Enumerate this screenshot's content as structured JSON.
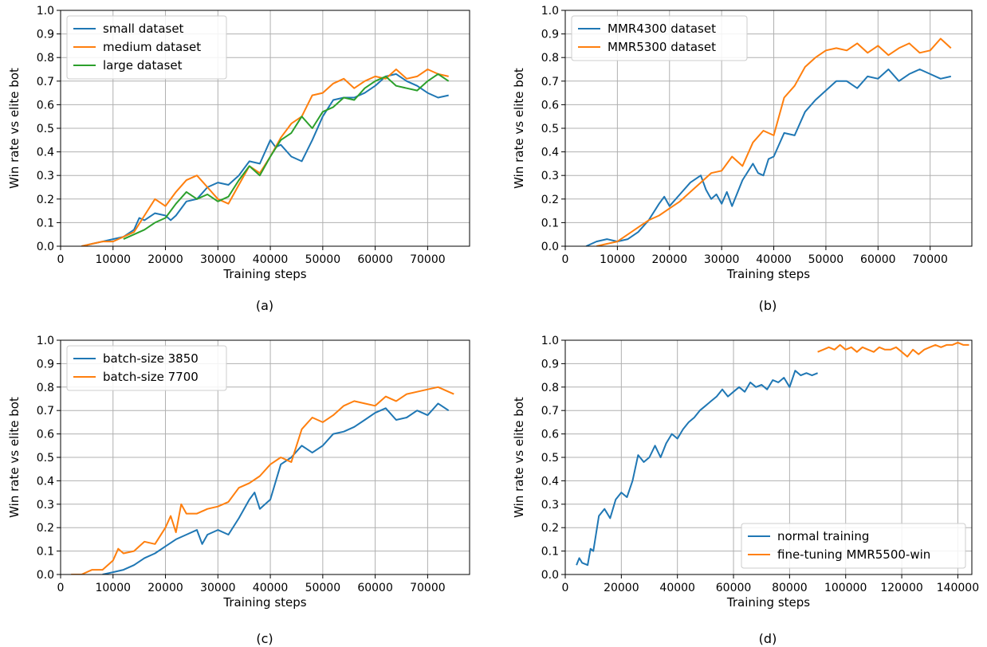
{
  "figure": {
    "colors": {
      "blue": "#1f77b4",
      "orange": "#ff7f0e",
      "green": "#2ca02c",
      "grid": "#b0b0b0"
    }
  },
  "chart_data": [
    {
      "type": "line",
      "caption": "(a)",
      "xlabel": "Training steps",
      "ylabel": "Win rate vs elite bot",
      "xlim": [
        0,
        78000
      ],
      "ylim": [
        0,
        1.0
      ],
      "xticks": [
        0,
        10000,
        20000,
        30000,
        40000,
        50000,
        60000,
        70000
      ],
      "yticks": [
        0.0,
        0.1,
        0.2,
        0.3,
        0.4,
        0.5,
        0.6,
        0.7,
        0.8,
        0.9,
        1.0
      ],
      "grid": true,
      "legend_position": "top-left",
      "series": [
        {
          "name": "small dataset",
          "color": "#1f77b4",
          "x": [
            4000,
            6000,
            8000,
            10000,
            12000,
            14000,
            15000,
            16000,
            18000,
            20000,
            21000,
            22000,
            24000,
            26000,
            28000,
            30000,
            32000,
            34000,
            36000,
            38000,
            40000,
            41000,
            42000,
            44000,
            46000,
            48000,
            50000,
            52000,
            54000,
            56000,
            58000,
            60000,
            62000,
            64000,
            66000,
            68000,
            70000,
            72000,
            74000
          ],
          "y": [
            0.0,
            0.01,
            0.02,
            0.03,
            0.04,
            0.07,
            0.12,
            0.11,
            0.14,
            0.13,
            0.11,
            0.13,
            0.19,
            0.2,
            0.25,
            0.27,
            0.26,
            0.3,
            0.36,
            0.35,
            0.45,
            0.42,
            0.43,
            0.38,
            0.36,
            0.45,
            0.55,
            0.62,
            0.63,
            0.63,
            0.65,
            0.68,
            0.72,
            0.73,
            0.7,
            0.68,
            0.65,
            0.63,
            0.64
          ]
        },
        {
          "name": "medium dataset",
          "color": "#ff7f0e",
          "x": [
            4000,
            6000,
            8000,
            10000,
            12000,
            14000,
            16000,
            18000,
            20000,
            22000,
            24000,
            26000,
            28000,
            30000,
            32000,
            34000,
            36000,
            38000,
            40000,
            42000,
            44000,
            46000,
            48000,
            50000,
            52000,
            54000,
            56000,
            58000,
            60000,
            62000,
            64000,
            66000,
            68000,
            70000,
            72000,
            74000
          ],
          "y": [
            0.0,
            0.01,
            0.02,
            0.02,
            0.04,
            0.06,
            0.13,
            0.2,
            0.17,
            0.23,
            0.28,
            0.3,
            0.25,
            0.2,
            0.18,
            0.26,
            0.34,
            0.31,
            0.38,
            0.46,
            0.52,
            0.55,
            0.64,
            0.65,
            0.69,
            0.71,
            0.67,
            0.7,
            0.72,
            0.71,
            0.75,
            0.71,
            0.72,
            0.75,
            0.73,
            0.72
          ]
        },
        {
          "name": "large dataset",
          "color": "#2ca02c",
          "x": [
            12000,
            14000,
            16000,
            18000,
            20000,
            22000,
            24000,
            26000,
            28000,
            30000,
            32000,
            34000,
            36000,
            38000,
            40000,
            42000,
            44000,
            46000,
            48000,
            50000,
            52000,
            54000,
            56000,
            58000,
            60000,
            62000,
            64000,
            66000,
            68000,
            70000,
            72000,
            74000
          ],
          "y": [
            0.03,
            0.05,
            0.07,
            0.1,
            0.12,
            0.18,
            0.23,
            0.2,
            0.22,
            0.19,
            0.21,
            0.28,
            0.34,
            0.3,
            0.38,
            0.45,
            0.48,
            0.55,
            0.5,
            0.57,
            0.59,
            0.63,
            0.62,
            0.67,
            0.7,
            0.72,
            0.68,
            0.67,
            0.66,
            0.7,
            0.73,
            0.7
          ]
        }
      ]
    },
    {
      "type": "line",
      "caption": "(b)",
      "xlabel": "Training steps",
      "ylabel": "Win rate vs elite bot",
      "xlim": [
        0,
        78000
      ],
      "ylim": [
        0,
        1.0
      ],
      "xticks": [
        0,
        10000,
        20000,
        30000,
        40000,
        50000,
        60000,
        70000
      ],
      "yticks": [
        0.0,
        0.1,
        0.2,
        0.3,
        0.4,
        0.5,
        0.6,
        0.7,
        0.8,
        0.9,
        1.0
      ],
      "grid": true,
      "legend_position": "top-left",
      "series": [
        {
          "name": "MMR4300 dataset",
          "color": "#1f77b4",
          "x": [
            4000,
            6000,
            8000,
            10000,
            12000,
            14000,
            16000,
            18000,
            19000,
            20000,
            22000,
            24000,
            26000,
            27000,
            28000,
            29000,
            30000,
            31000,
            32000,
            34000,
            36000,
            37000,
            38000,
            39000,
            40000,
            42000,
            44000,
            46000,
            48000,
            50000,
            52000,
            54000,
            56000,
            58000,
            60000,
            62000,
            64000,
            66000,
            68000,
            70000,
            72000,
            74000
          ],
          "y": [
            0.0,
            0.02,
            0.03,
            0.02,
            0.03,
            0.06,
            0.11,
            0.18,
            0.21,
            0.17,
            0.22,
            0.27,
            0.3,
            0.24,
            0.2,
            0.22,
            0.18,
            0.23,
            0.17,
            0.28,
            0.35,
            0.31,
            0.3,
            0.37,
            0.38,
            0.48,
            0.47,
            0.57,
            0.62,
            0.66,
            0.7,
            0.7,
            0.67,
            0.72,
            0.71,
            0.75,
            0.7,
            0.73,
            0.75,
            0.73,
            0.71,
            0.72
          ]
        },
        {
          "name": "MMR5300 dataset",
          "color": "#ff7f0e",
          "x": [
            6000,
            8000,
            10000,
            12000,
            14000,
            16000,
            18000,
            20000,
            22000,
            24000,
            26000,
            28000,
            30000,
            32000,
            34000,
            36000,
            38000,
            40000,
            42000,
            44000,
            46000,
            48000,
            50000,
            52000,
            54000,
            56000,
            58000,
            60000,
            62000,
            64000,
            66000,
            68000,
            70000,
            72000,
            74000
          ],
          "y": [
            0.0,
            0.01,
            0.02,
            0.05,
            0.08,
            0.11,
            0.13,
            0.16,
            0.19,
            0.23,
            0.27,
            0.31,
            0.32,
            0.38,
            0.34,
            0.44,
            0.49,
            0.47,
            0.63,
            0.68,
            0.76,
            0.8,
            0.83,
            0.84,
            0.83,
            0.86,
            0.82,
            0.85,
            0.81,
            0.84,
            0.86,
            0.82,
            0.83,
            0.88,
            0.84
          ]
        }
      ]
    },
    {
      "type": "line",
      "caption": "(c)",
      "xlabel": "Training steps",
      "ylabel": "Win rate vs elite bot",
      "xlim": [
        0,
        78000
      ],
      "ylim": [
        0,
        1.0
      ],
      "xticks": [
        0,
        10000,
        20000,
        30000,
        40000,
        50000,
        60000,
        70000
      ],
      "yticks": [
        0.0,
        0.1,
        0.2,
        0.3,
        0.4,
        0.5,
        0.6,
        0.7,
        0.8,
        0.9,
        1.0
      ],
      "grid": true,
      "legend_position": "top-left",
      "series": [
        {
          "name": "batch-size 3850",
          "color": "#1f77b4",
          "x": [
            8000,
            10000,
            12000,
            14000,
            16000,
            18000,
            20000,
            22000,
            24000,
            26000,
            27000,
            28000,
            30000,
            32000,
            34000,
            36000,
            37000,
            38000,
            40000,
            42000,
            44000,
            46000,
            48000,
            50000,
            52000,
            54000,
            56000,
            58000,
            60000,
            62000,
            64000,
            66000,
            68000,
            70000,
            72000,
            74000
          ],
          "y": [
            0.0,
            0.01,
            0.02,
            0.04,
            0.07,
            0.09,
            0.12,
            0.15,
            0.17,
            0.19,
            0.13,
            0.17,
            0.19,
            0.17,
            0.24,
            0.32,
            0.35,
            0.28,
            0.32,
            0.47,
            0.5,
            0.55,
            0.52,
            0.55,
            0.6,
            0.61,
            0.63,
            0.66,
            0.69,
            0.71,
            0.66,
            0.67,
            0.7,
            0.68,
            0.73,
            0.7
          ]
        },
        {
          "name": "batch-size 7700",
          "color": "#ff7f0e",
          "x": [
            2000,
            4000,
            6000,
            8000,
            10000,
            11000,
            12000,
            14000,
            16000,
            18000,
            20000,
            21000,
            22000,
            23000,
            24000,
            26000,
            28000,
            30000,
            32000,
            34000,
            36000,
            38000,
            40000,
            42000,
            44000,
            46000,
            48000,
            50000,
            52000,
            54000,
            56000,
            58000,
            60000,
            62000,
            64000,
            66000,
            68000,
            70000,
            72000,
            74000,
            75000
          ],
          "y": [
            0.0,
            0.0,
            0.02,
            0.02,
            0.06,
            0.11,
            0.09,
            0.1,
            0.14,
            0.13,
            0.2,
            0.25,
            0.18,
            0.3,
            0.26,
            0.26,
            0.28,
            0.29,
            0.31,
            0.37,
            0.39,
            0.42,
            0.47,
            0.5,
            0.48,
            0.62,
            0.67,
            0.65,
            0.68,
            0.72,
            0.74,
            0.73,
            0.72,
            0.76,
            0.74,
            0.77,
            0.78,
            0.79,
            0.8,
            0.78,
            0.77
          ]
        }
      ]
    },
    {
      "type": "line",
      "caption": "(d)",
      "xlabel": "Training steps",
      "ylabel": "Win rate vs elite bot",
      "xlim": [
        0,
        145000
      ],
      "ylim": [
        0,
        1.0
      ],
      "xticks": [
        0,
        20000,
        40000,
        60000,
        80000,
        100000,
        120000,
        140000
      ],
      "yticks": [
        0.0,
        0.1,
        0.2,
        0.3,
        0.4,
        0.5,
        0.6,
        0.7,
        0.8,
        0.9,
        1.0
      ],
      "grid": true,
      "legend_position": "bottom-right",
      "series": [
        {
          "name": "normal training",
          "color": "#1f77b4",
          "x": [
            4000,
            5000,
            6000,
            8000,
            9000,
            10000,
            12000,
            14000,
            16000,
            18000,
            20000,
            22000,
            24000,
            26000,
            28000,
            30000,
            32000,
            34000,
            36000,
            38000,
            40000,
            42000,
            44000,
            46000,
            48000,
            50000,
            52000,
            54000,
            56000,
            58000,
            60000,
            62000,
            64000,
            66000,
            68000,
            70000,
            72000,
            74000,
            76000,
            78000,
            80000,
            82000,
            84000,
            86000,
            88000,
            90000
          ],
          "y": [
            0.04,
            0.07,
            0.05,
            0.04,
            0.11,
            0.1,
            0.25,
            0.28,
            0.24,
            0.32,
            0.35,
            0.33,
            0.4,
            0.51,
            0.48,
            0.5,
            0.55,
            0.5,
            0.56,
            0.6,
            0.58,
            0.62,
            0.65,
            0.67,
            0.7,
            0.72,
            0.74,
            0.76,
            0.79,
            0.76,
            0.78,
            0.8,
            0.78,
            0.82,
            0.8,
            0.81,
            0.79,
            0.83,
            0.82,
            0.84,
            0.8,
            0.87,
            0.85,
            0.86,
            0.85,
            0.86
          ]
        },
        {
          "name": "fine-tuning MMR5500-win",
          "color": "#ff7f0e",
          "x": [
            90000,
            92000,
            94000,
            96000,
            98000,
            100000,
            102000,
            104000,
            106000,
            108000,
            110000,
            112000,
            114000,
            116000,
            118000,
            120000,
            122000,
            124000,
            126000,
            128000,
            130000,
            132000,
            134000,
            136000,
            138000,
            140000,
            142000,
            144000
          ],
          "y": [
            0.95,
            0.96,
            0.97,
            0.96,
            0.98,
            0.96,
            0.97,
            0.95,
            0.97,
            0.96,
            0.95,
            0.97,
            0.96,
            0.96,
            0.97,
            0.95,
            0.93,
            0.96,
            0.94,
            0.96,
            0.97,
            0.98,
            0.97,
            0.98,
            0.98,
            0.99,
            0.98,
            0.98
          ]
        }
      ]
    }
  ]
}
